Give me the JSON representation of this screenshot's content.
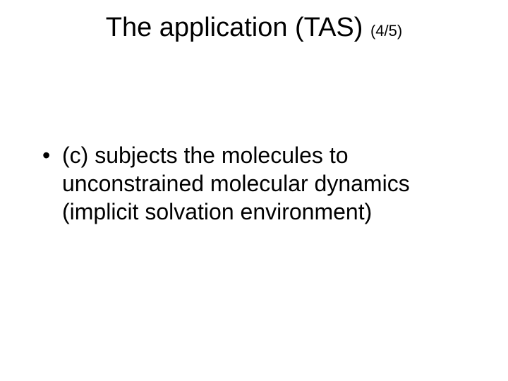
{
  "slide": {
    "background_color": "#ffffff",
    "text_color": "#000000",
    "font_family": "Arial",
    "title": {
      "main": "The application (TAS) ",
      "sub": "(4/5)",
      "main_fontsize": 38,
      "sub_fontsize": 22,
      "font_weight": 400,
      "align": "center"
    },
    "bullets": [
      {
        "marker": "•",
        "text": "(c) subjects the molecules to unconstrained molecular dynamics (implicit solvation environment)"
      }
    ],
    "body_fontsize": 32,
    "body_line_height": 1.25
  }
}
